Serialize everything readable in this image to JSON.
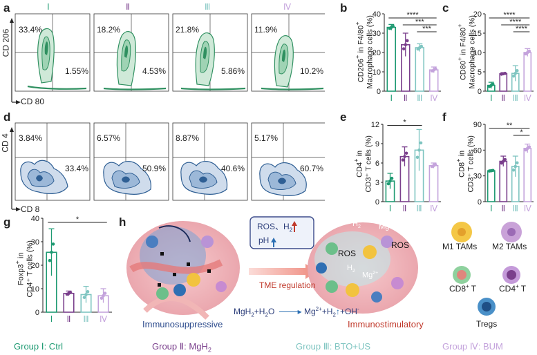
{
  "panels": {
    "a": {
      "label": "a",
      "group_headers": [
        "Ⅰ",
        "Ⅱ",
        "Ⅲ",
        "Ⅳ"
      ],
      "y_axis": "CD 206",
      "x_axis": "CD 80",
      "upper_left": [
        "33.4%",
        "18.2%",
        "21.8%",
        "11.9%"
      ],
      "lower_right": [
        "1.55%",
        "4.53%",
        "5.86%",
        "10.2%"
      ]
    },
    "d": {
      "label": "d",
      "y_axis": "CD 4",
      "x_axis": "CD 8",
      "upper_left": [
        "3.84%",
        "6.57%",
        "8.87%",
        "5.17%"
      ],
      "lower_right": [
        "33.4%",
        "50.9%",
        "40.6%",
        "60.7%"
      ]
    },
    "h": {
      "label": "h",
      "box_ros": "ROS、H",
      "box_h2_sub": "2",
      "box_ph": "pH",
      "arrow_label": "TME regulation",
      "left_caption": "Immunosuppressive",
      "right_caption": "Immunostimulatory",
      "equation_left": "MgH",
      "equation_plus_h2o": "+H",
      "equation_o": "O",
      "equation_right_mg": "Mg",
      "equation_right_sup": "2+",
      "equation_right_h": "+H",
      "equation_right_oh": "+OH",
      "equation_right_oh_sup": "-",
      "ros_label": "ROS",
      "h2_label": "H",
      "mg_label": "Mg",
      "legend": {
        "m1": "M1 TAMs",
        "m2": "M2 TAMs",
        "cd8": "CD8",
        "cd8_sup": "+",
        "cd8_t": " T",
        "cd4": "CD4",
        "cd4_sup": "+",
        "cd4_t": " T",
        "tregs": "Tregs"
      }
    }
  },
  "bottom_legend": {
    "g1": "Group Ⅰ: Ctrl",
    "g2": "Group Ⅱ: MgH",
    "g2_sub": "2",
    "g3": "Group Ⅲ: BTO+US",
    "g4": "Group Ⅳ: BUM"
  },
  "colors": {
    "g1": "#1e9a72",
    "g2": "#7a3f8c",
    "g3": "#7fc5c1",
    "g4": "#c4a3dc",
    "green_contour": "#2f9060",
    "blue_contour": "#2f5f94"
  },
  "chart_data": [
    {
      "panel": "b",
      "type": "bar",
      "ylabel_line1": "CD206",
      "ylabel_sup": "+",
      "ylabel_line1b": " in F4/80",
      "ylabel_sup2": "+",
      "ylabel_line2": "Macrophage cells (%)",
      "categories": [
        "Ⅰ",
        "Ⅱ",
        "Ⅲ",
        "Ⅳ"
      ],
      "values": [
        33,
        24,
        22.5,
        11
      ],
      "errors": [
        1.5,
        6,
        2,
        1.5
      ],
      "ylim": [
        0,
        40
      ],
      "yticks": [
        "0",
        "10",
        "20",
        "30",
        "40"
      ],
      "ytick_vals": [
        0,
        10,
        20,
        30,
        40
      ],
      "sig": [
        {
          "from": 0,
          "to": 3,
          "label": "****"
        },
        {
          "from": 1,
          "to": 3,
          "label": "***"
        },
        {
          "from": 2,
          "to": 3,
          "label": "***"
        }
      ]
    },
    {
      "panel": "c",
      "type": "bar",
      "ylabel_line1": "CD80",
      "ylabel_sup": "+",
      "ylabel_line1b": " in F4/80",
      "ylabel_sup2": "+",
      "ylabel_line2": "Macrophage cells (%)",
      "categories": [
        "Ⅰ",
        "Ⅱ",
        "Ⅲ",
        "Ⅳ"
      ],
      "values": [
        1.5,
        4.5,
        4.6,
        10
      ],
      "errors": [
        0.8,
        0.3,
        2,
        1
      ],
      "ylim": [
        0,
        20
      ],
      "yticks": [
        "0",
        "5",
        "10",
        "15",
        "20"
      ],
      "ytick_vals": [
        0,
        5,
        10,
        15,
        20
      ],
      "sig": [
        {
          "from": 0,
          "to": 3,
          "label": "****"
        },
        {
          "from": 1,
          "to": 3,
          "label": "****"
        },
        {
          "from": 2,
          "to": 3,
          "label": "****"
        }
      ]
    },
    {
      "panel": "e",
      "type": "bar",
      "ylabel_line1": "CD4",
      "ylabel_sup": "+",
      "ylabel_line1b": " in",
      "ylabel_sup2": "",
      "ylabel_line2": "CD3⁺ T cells (%)",
      "categories": [
        "Ⅰ",
        "Ⅱ",
        "Ⅲ",
        "Ⅳ"
      ],
      "values": [
        3.2,
        7,
        8,
        5.6
      ],
      "errors": [
        1.2,
        1.5,
        3.2,
        0.4
      ],
      "ylim": [
        0,
        12
      ],
      "yticks": [
        "0",
        "3",
        "6",
        "9",
        "12"
      ],
      "ytick_vals": [
        0,
        3,
        6,
        9,
        12
      ],
      "sig": [
        {
          "from": 0,
          "to": 2,
          "label": "*"
        }
      ]
    },
    {
      "panel": "f",
      "type": "bar",
      "ylabel_line1": "CD8",
      "ylabel_sup": "+",
      "ylabel_line1b": " in",
      "ylabel_sup2": "",
      "ylabel_line2": "CD3⁺ T cells (%)",
      "categories": [
        "Ⅰ",
        "Ⅱ",
        "Ⅲ",
        "Ⅳ"
      ],
      "values": [
        36,
        47,
        41,
        62
      ],
      "errors": [
        1,
        6,
        12,
        5
      ],
      "ylim": [
        0,
        90
      ],
      "yticks": [
        "0",
        "30",
        "60",
        "90"
      ],
      "ytick_vals": [
        0,
        30,
        60,
        90
      ],
      "sig": [
        {
          "from": 0,
          "to": 3,
          "label": "**"
        },
        {
          "from": 2,
          "to": 3,
          "label": "*"
        }
      ]
    },
    {
      "panel": "g",
      "type": "bar",
      "ylabel_line1": "Foxp3",
      "ylabel_sup": "+",
      "ylabel_line1b": " in",
      "ylabel_sup2": "",
      "ylabel_line2": "CD4⁺ T cells (%)",
      "categories": [
        "Ⅰ",
        "Ⅱ",
        "Ⅲ",
        "Ⅳ"
      ],
      "values": [
        25.5,
        8,
        7.5,
        7
      ],
      "errors": [
        10,
        1,
        3.5,
        3
      ],
      "ylim": [
        0,
        40
      ],
      "yticks": [
        "0",
        "10",
        "20",
        "30",
        "40"
      ],
      "ytick_vals": [
        0,
        10,
        20,
        30,
        40
      ],
      "sig": [
        {
          "from": 0,
          "to": 3,
          "label": "*"
        }
      ]
    }
  ],
  "panel_labels": {
    "b": "b",
    "c": "c",
    "e": "e",
    "f": "f",
    "g": "g"
  }
}
